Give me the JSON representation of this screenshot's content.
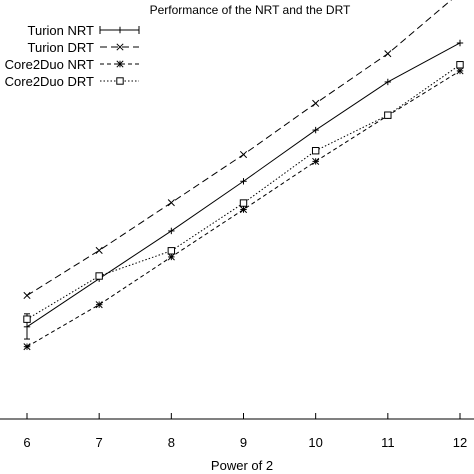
{
  "chart_data": {
    "type": "line",
    "title": "Performance of the NRT and the DRT",
    "xlabel": "Power of 2",
    "ylabel": "",
    "x": [
      6,
      7,
      8,
      9,
      10,
      11,
      12
    ],
    "xlim": [
      6,
      12
    ],
    "ylim": [
      0,
      1
    ],
    "x_ticks": [
      "6",
      "7",
      "8",
      "9",
      "10",
      "11",
      "12"
    ],
    "grid": false,
    "legend_position": "top-left",
    "series": [
      {
        "name": "Turion NRT",
        "marker": "plus",
        "dash": "solid",
        "error_bars": true,
        "values": [
          0.223,
          0.349,
          0.474,
          0.604,
          0.738,
          0.864,
          0.966
        ],
        "err_low": [
          0.191,
          null,
          null,
          null,
          null,
          null,
          null
        ],
        "err_high": [
          0.257,
          null,
          null,
          null,
          null,
          null,
          null
        ]
      },
      {
        "name": "Turion DRT",
        "marker": "x",
        "dash": "long-dash",
        "values": [
          0.305,
          0.423,
          0.548,
          0.674,
          0.808,
          0.938,
          1.098
        ]
      },
      {
        "name": "Core2Duo NRT",
        "marker": "star",
        "dash": "short-dash",
        "values": [
          0.171,
          0.281,
          0.406,
          0.53,
          0.656,
          0.776,
          0.893
        ]
      },
      {
        "name": "Core2Duo DRT",
        "marker": "square",
        "dash": "dotted",
        "values": [
          0.243,
          0.356,
          0.422,
          0.547,
          0.684,
          0.777,
          0.909
        ]
      }
    ]
  }
}
